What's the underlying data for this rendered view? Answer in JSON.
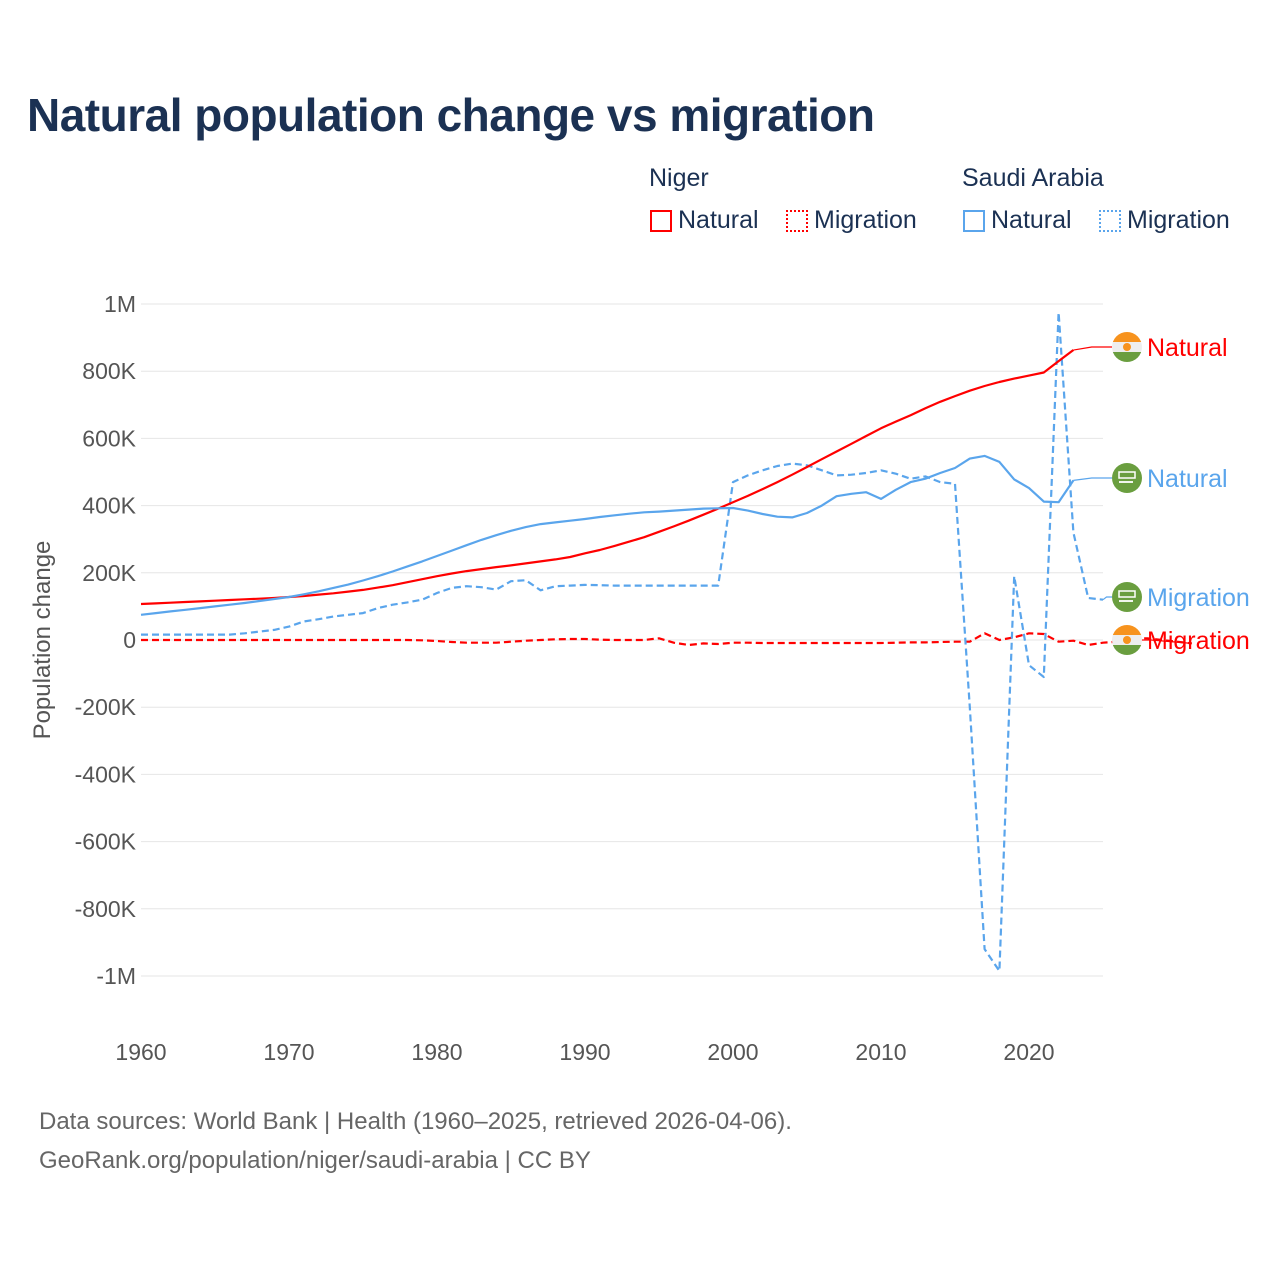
{
  "chart_data": {
    "type": "line",
    "title": "Natural population change vs migration",
    "ylabel": "Population change",
    "xlabel": "",
    "xlim": [
      1960,
      2025
    ],
    "ylim": [
      -1000000,
      1000000
    ],
    "x_ticks": [
      1960,
      1970,
      1980,
      1990,
      2000,
      2010,
      2020
    ],
    "x_tick_labels": [
      "1960",
      "1970",
      "1980",
      "1990",
      "2000",
      "2010",
      "2020"
    ],
    "y_ticks": [
      1000000,
      800000,
      600000,
      400000,
      200000,
      0,
      -200000,
      -400000,
      -600000,
      -800000,
      -1000000
    ],
    "y_tick_labels": [
      "1M",
      "800K",
      "600K",
      "400K",
      "200K",
      "0",
      "-200K",
      "-400K",
      "-600K",
      "-800K",
      "-1M"
    ],
    "grid": true,
    "legend_groups": [
      {
        "name": "Niger",
        "items": [
          "Natural",
          "Migration"
        ]
      },
      {
        "name": "Saudi Arabia",
        "items": [
          "Natural",
          "Migration"
        ]
      }
    ],
    "series": [
      {
        "name": "Niger Natural",
        "country": "Niger",
        "kind": "Natural",
        "label": "Natural",
        "color": "#ff0000",
        "dash": false,
        "flag": "niger-flag",
        "start": 1960,
        "values": [
          107,
          109,
          111,
          113,
          115,
          117,
          119,
          121,
          123,
          125,
          128,
          131,
          135,
          139,
          144,
          149,
          156,
          163,
          172,
          181,
          190,
          198,
          205,
          211,
          217,
          222,
          228,
          234,
          240,
          247,
          258,
          268,
          280,
          293,
          306,
          322,
          338,
          355,
          373,
          391,
          410,
          429,
          449,
          470,
          492,
          515,
          538,
          561,
          584,
          607,
          630,
          650,
          669,
          690,
          709,
          726,
          742,
          756,
          768,
          778,
          787,
          796,
          830,
          863
        ]
      },
      {
        "name": "Niger Migration",
        "country": "Niger",
        "kind": "Migration",
        "label": "Migration",
        "color": "#ff0000",
        "dash": true,
        "flag": "niger-flag",
        "start": 1960,
        "values": [
          0,
          0,
          0,
          0,
          0,
          0,
          0,
          0,
          0,
          0,
          0,
          0,
          0,
          0,
          0,
          0,
          0,
          0,
          0,
          -1,
          -3,
          -6,
          -8,
          -8,
          -8,
          -5,
          -2,
          0,
          2,
          3,
          3,
          1,
          0,
          0,
          0,
          5,
          -8,
          -15,
          -10,
          -12,
          -8,
          -8,
          -9,
          -9,
          -9,
          -9,
          -9,
          -9,
          -9,
          -9,
          -9,
          -8,
          -7,
          -7,
          -6,
          -5,
          -5,
          20,
          0,
          8,
          20,
          18,
          -5,
          -2,
          -15,
          -8,
          -5,
          5,
          5,
          0,
          -5,
          -10
        ]
      },
      {
        "name": "Saudi Arabia Natural",
        "country": "Saudi Arabia",
        "kind": "Natural",
        "label": "Natural",
        "color": "#5aa5ec",
        "dash": false,
        "flag": "saudi-flag",
        "start": 1960,
        "values": [
          75,
          80,
          85,
          90,
          95,
          100,
          105,
          110,
          116,
          122,
          128,
          136,
          145,
          155,
          165,
          177,
          190,
          204,
          219,
          234,
          250,
          266,
          282,
          298,
          312,
          325,
          336,
          345,
          350,
          355,
          360,
          366,
          371,
          376,
          380,
          382,
          385,
          388,
          391,
          392,
          393,
          385,
          375,
          367,
          365,
          378,
          400,
          428,
          435,
          440,
          420,
          447,
          470,
          480,
          497,
          512,
          540,
          548,
          530,
          478,
          452,
          412,
          410,
          475
        ]
      },
      {
        "name": "Saudi Arabia Migration",
        "country": "Saudi Arabia",
        "kind": "Migration",
        "label": "Migration",
        "color": "#5aa5ec",
        "dash": true,
        "flag": "saudi-flag",
        "start": 1960,
        "values": [
          16,
          16,
          16,
          16,
          16,
          16,
          16,
          20,
          25,
          30,
          40,
          55,
          62,
          70,
          75,
          80,
          95,
          105,
          112,
          120,
          140,
          155,
          160,
          157,
          150,
          175,
          178,
          148,
          160,
          162,
          164,
          163,
          162,
          162,
          162,
          162,
          162,
          162,
          162,
          162,
          470,
          490,
          505,
          518,
          525,
          520,
          505,
          490,
          492,
          497,
          505,
          495,
          480,
          487,
          470,
          465,
          -200,
          -920,
          -985,
          190,
          -75,
          -110,
          975,
          320,
          125,
          120
        ]
      }
    ],
    "value_unit": "thousands"
  },
  "footer": {
    "line1": "Data sources: World Bank | Health (1960–2025, retrieved 2026-04-06).",
    "line2": "GeoRank.org/population/niger/saudi-arabia | CC BY"
  },
  "colors": {
    "niger": "#ff0000",
    "saudi": "#5aa5ec",
    "title": "#1b3153"
  }
}
